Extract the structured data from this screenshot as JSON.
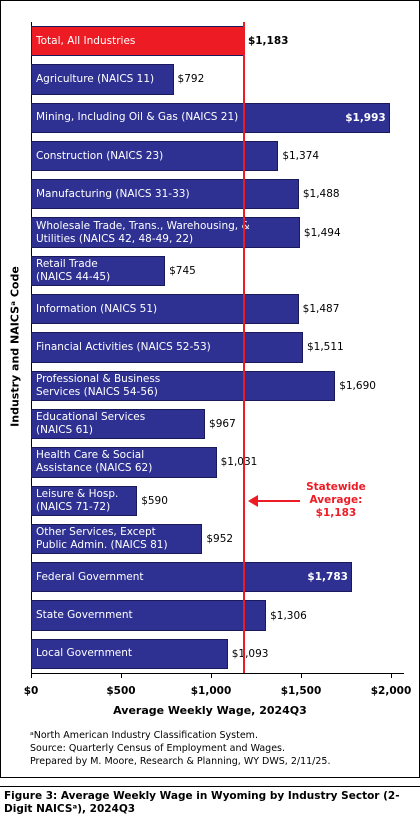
{
  "chart_data": {
    "type": "bar",
    "orientation": "horizontal",
    "categories": [
      "Total, All Industries",
      "Agriculture (NAICS 11)",
      "Mining, Including Oil & Gas (NAICS 21)",
      "Construction (NAICS 23)",
      "Manufacturing (NAICS 31-33)",
      "Wholesale Trade, Trans., Warehousing, &\nUtilities (NAICS 42, 48-49, 22)",
      "Retail Trade\n(NAICS 44-45)",
      "Information (NAICS 51)",
      "Financial Activities (NAICS 52-53)",
      "Professional & Business\nServices (NAICS 54-56)",
      "Educational Services\n(NAICS 61)",
      "Health Care & Social\nAssistance (NAICS 62)",
      "Leisure & Hosp.\n(NAICS 71-72)",
      "Other Services, Except\nPublic Admin. (NAICS 81)",
      "Federal Government",
      "State Government",
      "Local Government"
    ],
    "values": [
      1183,
      792,
      1993,
      1374,
      1488,
      1494,
      745,
      1487,
      1511,
      1690,
      967,
      1031,
      590,
      952,
      1783,
      1306,
      1093
    ],
    "value_labels": [
      "$1,183",
      "$792",
      "$1,993",
      "$1,374",
      "$1,488",
      "$1,494",
      "$745",
      "$1,487",
      "$1,511",
      "$1,690",
      "$967",
      "$1,031",
      "$590",
      "$952",
      "$1,783",
      "$1,306",
      "$1,093"
    ],
    "colors": [
      "#ed1c24",
      "#2e3192",
      "#2e3192",
      "#2e3192",
      "#2e3192",
      "#2e3192",
      "#2e3192",
      "#2e3192",
      "#2e3192",
      "#2e3192",
      "#2e3192",
      "#2e3192",
      "#2e3192",
      "#2e3192",
      "#2e3192",
      "#2e3192",
      "#2e3192"
    ],
    "xlim": [
      0,
      2000
    ],
    "xticks": [
      {
        "value": 0,
        "label": "$0"
      },
      {
        "value": 500,
        "label": "$500"
      },
      {
        "value": 1000,
        "label": "$1,000"
      },
      {
        "value": 1500,
        "label": "$1,500"
      },
      {
        "value": 2000,
        "label": "$2,000"
      }
    ],
    "x_label": "Average Weekly Wage, 2024Q3",
    "y_label": "Industry and NAICSᵃ Code",
    "reference_line": {
      "value": 1183,
      "color": "#ed1c24",
      "label": "Statewide\nAverage:\n$1,183"
    },
    "notes": [
      "ᵃNorth American Industry Classification System.",
      "Source: Quarterly Census of Employment and Wages.",
      "Prepared by M. Moore, Research & Planning, WY DWS, 2/11/25."
    ],
    "caption": "Figure 3: Average Weekly Wage in Wyoming by Industry Sector (2-Digit NAICSᵃ), 2024Q3"
  }
}
